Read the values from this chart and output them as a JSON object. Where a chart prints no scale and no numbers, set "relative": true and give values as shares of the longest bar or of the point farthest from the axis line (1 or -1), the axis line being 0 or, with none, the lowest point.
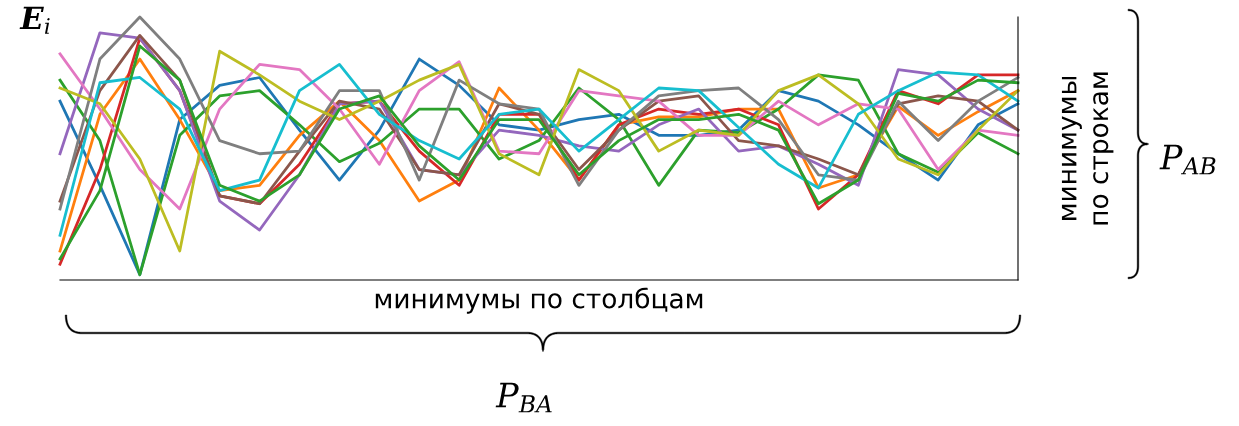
{
  "chart_data": {
    "type": "line",
    "relative": true,
    "ylabel": "E$_{i}$",
    "xlabel": "минимумы по столбцам",
    "y2label": "минимумы\nпо строкам",
    "annotations": [
      "P$_{AB}$",
      "P$_{BA}$"
    ],
    "categories": [
      null,
      null,
      null,
      null,
      null,
      null,
      null,
      null,
      null,
      null,
      null,
      null,
      null,
      null,
      null,
      null,
      null,
      null,
      null,
      null,
      null,
      null,
      null,
      null,
      null
    ],
    "series": [
      {
        "color": "#1f77b4",
        "values": [
          0.68,
          0.36,
          0.02,
          0.61,
          0.74,
          0.77,
          0.57,
          0.38,
          0.57,
          0.84,
          0.74,
          0.59,
          0.57,
          0.61,
          0.63,
          0.55,
          0.55,
          0.57,
          0.72,
          0.68,
          0.59,
          0.48,
          0.38,
          0.59,
          0.67
        ]
      },
      {
        "color": "#ff7f0e",
        "values": [
          0.11,
          0.63,
          0.84,
          0.61,
          0.34,
          0.36,
          0.55,
          0.68,
          0.53,
          0.3,
          0.38,
          0.73,
          0.57,
          0.38,
          0.59,
          0.62,
          0.62,
          0.65,
          0.65,
          0.35,
          0.4,
          0.66,
          0.55,
          0.64,
          0.72
        ]
      },
      {
        "color": "#2ca02c",
        "values": [
          0.76,
          0.53,
          0.02,
          0.55,
          0.7,
          0.72,
          0.59,
          0.45,
          0.52,
          0.65,
          0.65,
          0.46,
          0.53,
          0.73,
          0.61,
          0.36,
          0.57,
          0.56,
          0.65,
          0.78,
          0.76,
          0.48,
          0.41,
          0.56,
          0.48
        ]
      },
      {
        "color": "#d62728",
        "values": [
          0.06,
          0.42,
          0.92,
          0.72,
          0.32,
          0.29,
          0.44,
          0.67,
          0.68,
          0.49,
          0.36,
          0.63,
          0.63,
          0.38,
          0.59,
          0.65,
          0.63,
          0.65,
          0.59,
          0.27,
          0.4,
          0.72,
          0.67,
          0.78,
          0.78
        ]
      },
      {
        "color": "#9467bd",
        "values": [
          0.48,
          0.94,
          0.92,
          0.72,
          0.3,
          0.19,
          0.4,
          0.67,
          0.68,
          0.42,
          0.4,
          0.57,
          0.55,
          0.51,
          0.49,
          0.59,
          0.65,
          0.49,
          0.51,
          0.44,
          0.36,
          0.8,
          0.78,
          0.65,
          0.57
        ]
      },
      {
        "color": "#8c564b",
        "values": [
          0.3,
          0.72,
          0.93,
          0.76,
          0.32,
          0.29,
          0.49,
          0.68,
          0.65,
          0.42,
          0.4,
          0.67,
          0.63,
          0.42,
          0.57,
          0.68,
          0.7,
          0.53,
          0.51,
          0.46,
          0.4,
          0.67,
          0.7,
          0.68,
          0.57
        ]
      },
      {
        "color": "#e377c2",
        "values": [
          0.86,
          0.65,
          0.42,
          0.27,
          0.65,
          0.82,
          0.8,
          0.65,
          0.44,
          0.72,
          0.83,
          0.49,
          0.48,
          0.72,
          0.7,
          0.68,
          0.55,
          0.55,
          0.68,
          0.59,
          0.67,
          0.65,
          0.42,
          0.57,
          0.55
        ]
      },
      {
        "color": "#7f7f7f",
        "values": [
          0.27,
          0.84,
          1.0,
          0.84,
          0.53,
          0.48,
          0.49,
          0.72,
          0.72,
          0.38,
          0.76,
          0.67,
          0.65,
          0.36,
          0.57,
          0.7,
          0.72,
          0.73,
          0.61,
          0.4,
          0.38,
          0.68,
          0.53,
          0.68,
          0.77
        ]
      },
      {
        "color": "#bcbd22",
        "values": [
          0.73,
          0.67,
          0.46,
          0.11,
          0.87,
          0.78,
          0.68,
          0.61,
          0.68,
          0.76,
          0.82,
          0.48,
          0.4,
          0.8,
          0.72,
          0.49,
          0.57,
          0.55,
          0.72,
          0.78,
          0.67,
          0.46,
          0.4,
          0.57,
          0.72
        ]
      },
      {
        "color": "#17becf",
        "values": [
          0.17,
          0.75,
          0.77,
          0.65,
          0.34,
          0.38,
          0.72,
          0.82,
          0.63,
          0.53,
          0.46,
          0.63,
          0.65,
          0.49,
          0.61,
          0.73,
          0.72,
          0.58,
          0.44,
          0.35,
          0.63,
          0.72,
          0.79,
          0.78,
          0.68
        ]
      },
      {
        "color": "#2ca02c",
        "values": [
          0.08,
          0.34,
          0.89,
          0.76,
          0.36,
          0.3,
          0.4,
          0.65,
          0.7,
          0.51,
          0.38,
          0.61,
          0.61,
          0.4,
          0.53,
          0.61,
          0.61,
          0.63,
          0.57,
          0.29,
          0.38,
          0.71,
          0.68,
          0.76,
          0.75
        ]
      }
    ]
  }
}
